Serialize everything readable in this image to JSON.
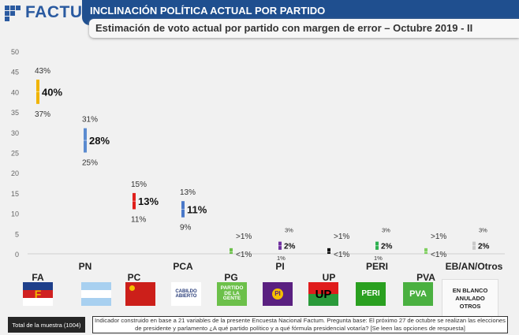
{
  "brand": "FACTUM",
  "header": {
    "title": "INCLINACIÓN POLÍTICA ACTUAL POR PARTIDO",
    "subtitle": "Estimación de voto actual por partido con margen de error – Octubre 2019 - II"
  },
  "chart_data": {
    "type": "error-bar",
    "ylim": [
      0,
      50
    ],
    "yticks": [
      "0",
      "5",
      "10",
      "15",
      "20",
      "25",
      "30",
      "35",
      "40",
      "45",
      "50"
    ],
    "grid": false,
    "parties": [
      {
        "name": "FA",
        "value": 40,
        "low": 37,
        "high": 43,
        "value_label": "40%",
        "low_label": "37%",
        "high_label": "43%",
        "color": "#f0b400"
      },
      {
        "name": "PN",
        "value": 28,
        "low": 25,
        "high": 31,
        "value_label": "28%",
        "low_label": "25%",
        "high_label": "31%",
        "color": "#5b8bd0"
      },
      {
        "name": "PC",
        "value": 13,
        "low": 11,
        "high": 15,
        "value_label": "13%",
        "low_label": "11%",
        "high_label": "15%",
        "color": "#e0201c"
      },
      {
        "name": "PCA",
        "value": 11,
        "low": 9,
        "high": 13,
        "value_label": "11%",
        "low_label": "9%",
        "high_label": "13%",
        "color": "#4a78c8"
      },
      {
        "name": "PG",
        "value": 0.5,
        "low": 0,
        "high": 1,
        "value_label": "",
        "low_label": "<1%",
        "high_label": ">1%",
        "color": "#6cc04a"
      },
      {
        "name": "PI",
        "value": 2,
        "low": 1,
        "high": 3,
        "value_label": "2%",
        "low_label": "1%",
        "high_label": "3%",
        "color": "#7030a0"
      },
      {
        "name": "UP",
        "value": 0.5,
        "low": 0,
        "high": 1,
        "value_label": "",
        "low_label": "<1%",
        "high_label": ">1%",
        "color": "#111111"
      },
      {
        "name": "PERI",
        "value": 2,
        "low": 1,
        "high": 3,
        "value_label": "2%",
        "low_label": "1%",
        "high_label": "3%",
        "color": "#2eb050"
      },
      {
        "name": "PVA",
        "value": 0.5,
        "low": 0,
        "high": 1,
        "value_label": "",
        "low_label": "<1%",
        "high_label": ">1%",
        "color": "#7fcf5f"
      },
      {
        "name": "EB/AN/Otros",
        "value": 2,
        "low": 1,
        "high": 3,
        "value_label": "2%",
        "low_label": "",
        "high_label": "3%",
        "color": "#c8c8c8"
      }
    ]
  },
  "logos": {
    "pg": "PARTIDO DE LA GENTE",
    "pi": "PI",
    "up": "UP",
    "peri": "PERI",
    "pva": "PVA",
    "pca": "CABILDO ABIERTO"
  },
  "eb_box": [
    "EN BLANCO",
    "ANULADO",
    "OTROS"
  ],
  "footer": {
    "total": "Total de la muestra (1004)",
    "note": "Indicador construido en base a 21 variables de la presente Encuesta Nacional Factum. Pregunta base: El próximo 27 de octubre se realizan las elecciones de presidente y parlamento ¿A qué partido político y a qué fórmula presidencial votaría? [Se leen las opciones de respuesta]"
  }
}
